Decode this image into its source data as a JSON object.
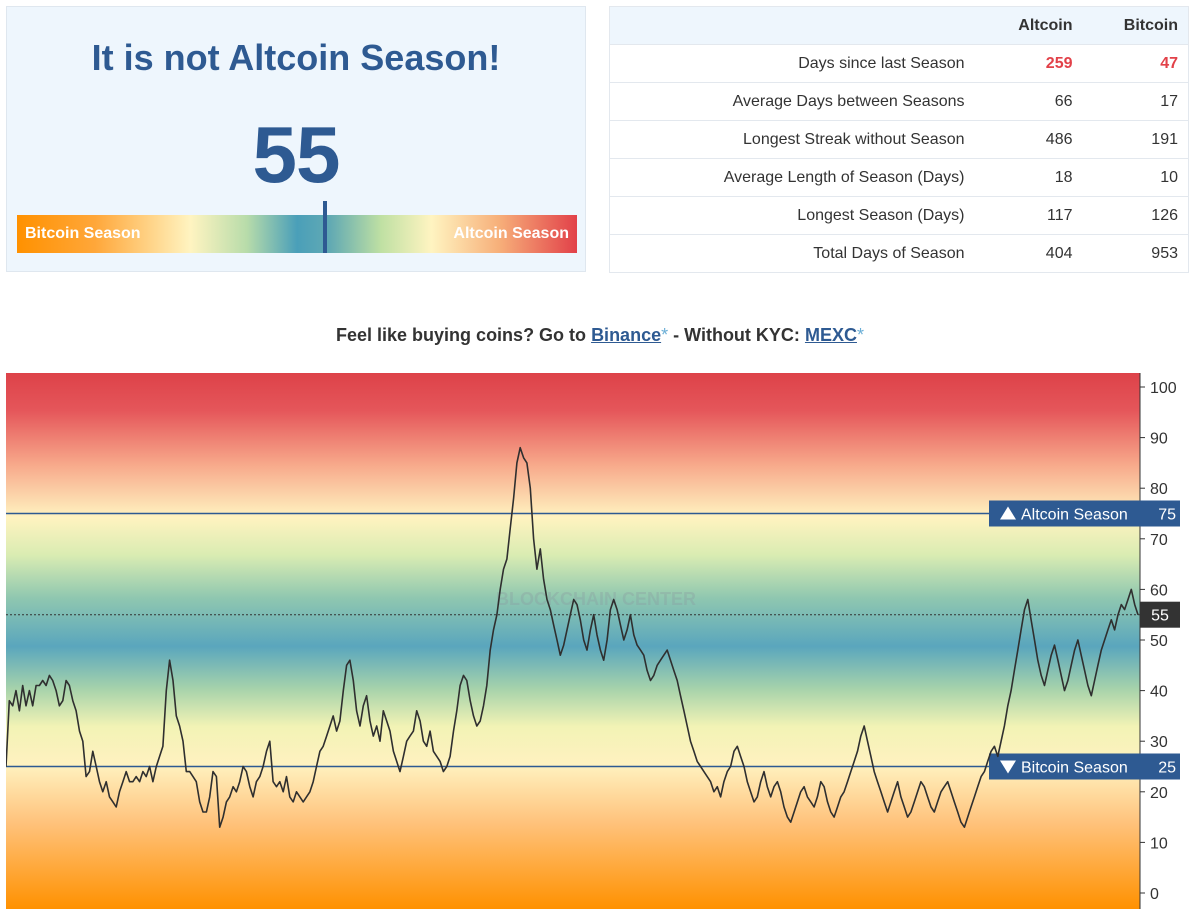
{
  "gauge": {
    "title": "It is not Altcoin Season!",
    "value": 55,
    "left_label": "Bitcoin Season",
    "right_label": "Altcoin Season",
    "accent_color": "#2e5a92"
  },
  "stats": {
    "headers": [
      "",
      "Altcoin",
      "Bitcoin"
    ],
    "rows": [
      {
        "label": "Days since last Season",
        "altcoin": "259",
        "bitcoin": "47",
        "highlight": true
      },
      {
        "label": "Average Days between Seasons",
        "altcoin": "66",
        "bitcoin": "17"
      },
      {
        "label": "Longest Streak without Season",
        "altcoin": "486",
        "bitcoin": "191"
      },
      {
        "label": "Average Length of Season (Days)",
        "altcoin": "18",
        "bitcoin": "10"
      },
      {
        "label": "Longest Season (Days)",
        "altcoin": "117",
        "bitcoin": "126"
      },
      {
        "label": "Total Days of Season",
        "altcoin": "404",
        "bitcoin": "953"
      }
    ],
    "highlight_color": "#e24149"
  },
  "promo": {
    "prefix": "Feel like buying coins? Go to",
    "binance": "Binance",
    "middle": "- Without KYC:",
    "mexc": "MEXC",
    "star": "*"
  },
  "chart_data": {
    "type": "line",
    "title": "",
    "xlabel": "",
    "ylabel": "",
    "ylim": [
      0,
      100
    ],
    "y_ticks": [
      0,
      10,
      20,
      30,
      40,
      50,
      60,
      70,
      80,
      90,
      100
    ],
    "grid": false,
    "watermark": "BLOCKCHAIN CENTER",
    "current_value": 55,
    "thresholds": [
      {
        "label": "Altcoin Season",
        "value": 75,
        "direction": "up"
      },
      {
        "label": "Bitcoin Season",
        "value": 25,
        "direction": "down"
      }
    ],
    "series": [
      {
        "values": [
          25,
          38,
          37,
          40,
          36,
          41,
          37,
          40,
          37,
          41,
          41,
          42,
          41,
          43,
          42,
          40,
          37,
          38,
          42,
          41,
          38,
          36,
          32,
          30,
          23,
          24,
          28,
          25,
          22,
          20,
          22,
          19,
          18,
          17,
          20,
          22,
          24,
          22,
          22,
          23,
          22,
          24,
          23,
          25,
          22,
          25,
          27,
          29,
          40,
          46,
          42,
          35,
          33,
          30,
          24,
          24,
          23,
          22,
          18,
          16,
          16,
          19,
          24,
          23,
          13,
          15,
          18,
          19,
          21,
          20,
          22,
          25,
          24,
          21,
          19,
          22,
          23,
          25,
          28,
          30,
          22,
          21,
          22,
          20,
          23,
          19,
          18,
          20,
          19,
          18,
          19,
          20,
          22,
          25,
          28,
          29,
          31,
          33,
          35,
          32,
          34,
          40,
          45,
          46,
          42,
          36,
          33,
          37,
          39,
          34,
          31,
          33,
          30,
          36,
          34,
          32,
          28,
          26,
          24,
          27,
          30,
          31,
          32,
          36,
          34,
          30,
          29,
          32,
          28,
          27,
          26,
          24,
          25,
          27,
          32,
          36,
          41,
          43,
          42,
          38,
          35,
          33,
          34,
          37,
          41,
          48,
          52,
          55,
          60,
          64,
          66,
          72,
          78,
          85,
          88,
          86,
          85,
          80,
          70,
          64,
          68,
          62,
          58,
          56,
          53,
          50,
          47,
          49,
          52,
          55,
          58,
          57,
          54,
          50,
          48,
          52,
          55,
          51,
          48,
          46,
          50,
          56,
          58,
          56,
          53,
          50,
          52,
          55,
          51,
          49,
          48,
          47,
          44,
          42,
          43,
          45,
          46,
          47,
          48,
          46,
          44,
          42,
          39,
          36,
          33,
          30,
          28,
          26,
          25,
          24,
          23,
          22,
          20,
          21,
          19,
          22,
          24,
          25,
          28,
          29,
          27,
          25,
          22,
          20,
          18,
          19,
          22,
          24,
          21,
          19,
          21,
          22,
          20,
          17,
          15,
          14,
          16,
          18,
          20,
          21,
          19,
          18,
          17,
          19,
          22,
          21,
          18,
          16,
          15,
          17,
          19,
          20,
          22,
          24,
          26,
          28,
          31,
          33,
          30,
          27,
          24,
          22,
          20,
          18,
          16,
          18,
          20,
          22,
          19,
          17,
          15,
          16,
          18,
          20,
          22,
          21,
          19,
          17,
          16,
          18,
          20,
          21,
          22,
          20,
          18,
          16,
          14,
          13,
          15,
          17,
          19,
          21,
          23,
          24,
          26,
          28,
          29,
          27,
          30,
          33,
          37,
          40,
          44,
          48,
          52,
          56,
          58,
          54,
          50,
          46,
          43,
          41,
          44,
          47,
          49,
          46,
          43,
          40,
          42,
          45,
          48,
          50,
          47,
          44,
          41,
          39,
          42,
          45,
          48,
          50,
          52,
          54,
          52,
          55,
          57,
          56,
          58,
          60,
          57,
          55
        ]
      }
    ]
  }
}
